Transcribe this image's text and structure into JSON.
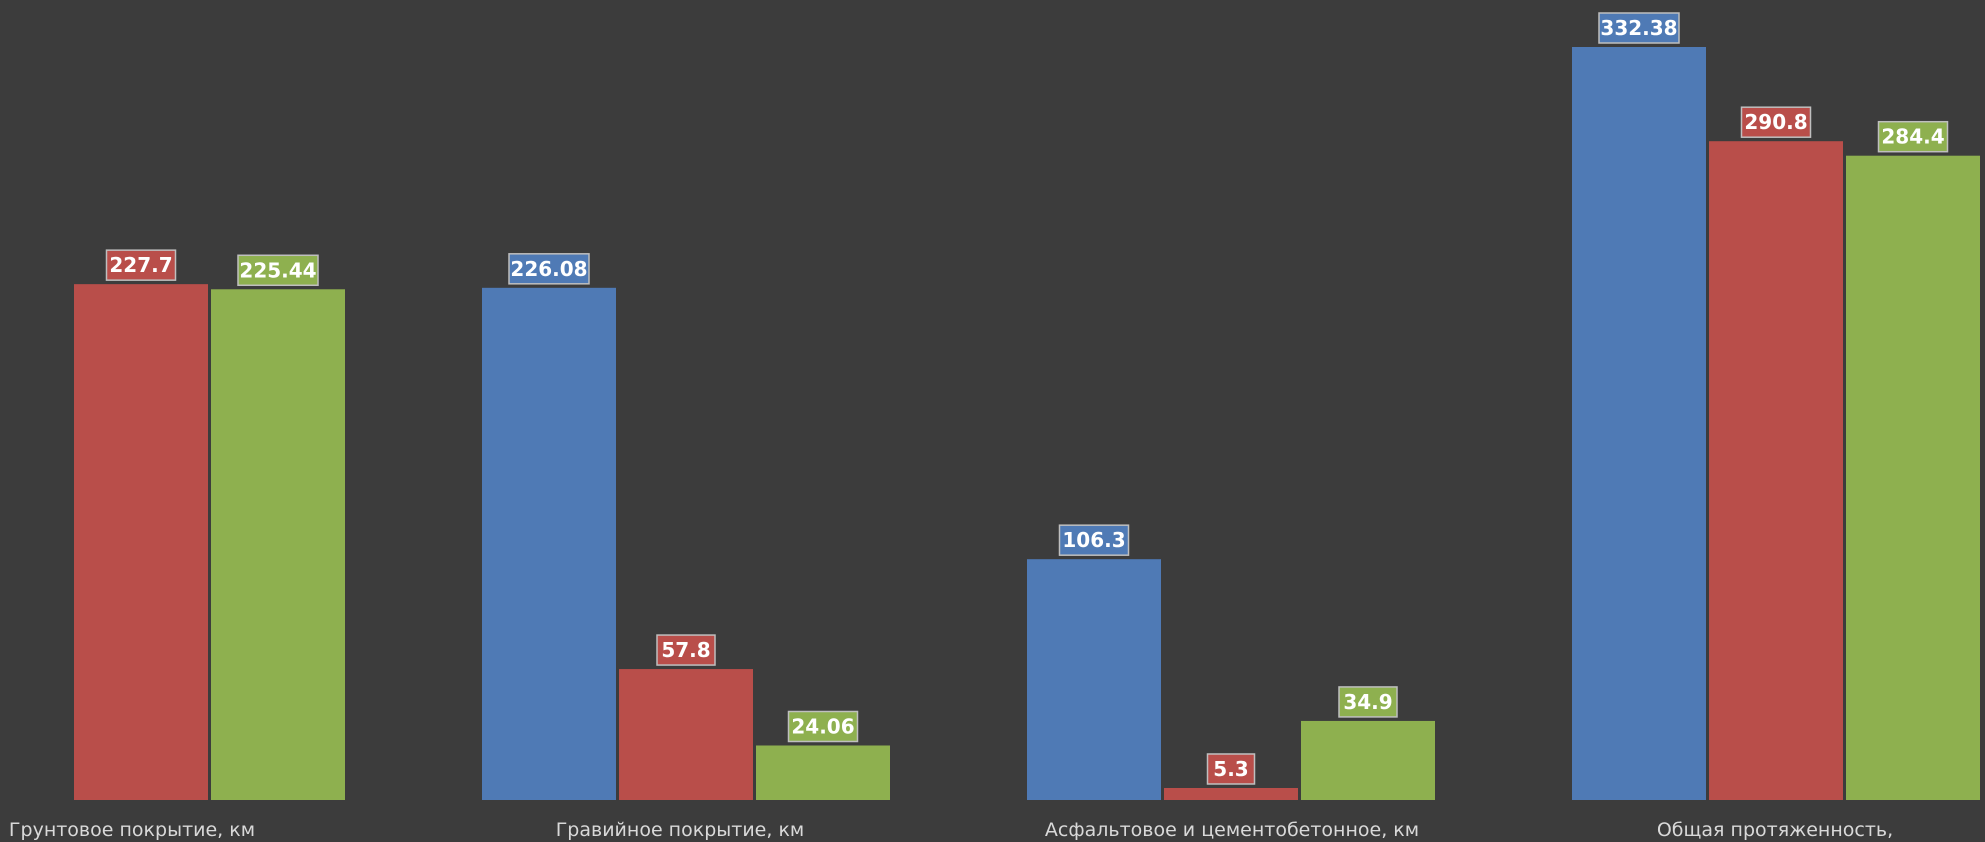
{
  "chart_data": {
    "type": "bar",
    "categories": [
      "Грунтовое покрытие, км",
      "Гравийное покрытие, км",
      "Асфальтовое и цементобетонное, км",
      "Общая протяженность,"
    ],
    "series": [
      {
        "color": "#4f7ab5",
        "values": [
          null,
          226.08,
          106.3,
          332.38
        ]
      },
      {
        "color": "#b94e4a",
        "values": [
          227.7,
          57.8,
          5.3,
          290.8
        ]
      },
      {
        "color": "#8eb04f",
        "values": [
          225.44,
          24.06,
          34.9,
          284.4
        ]
      }
    ],
    "title": "",
    "xlabel": "",
    "ylabel": "",
    "ylim": [
      0,
      340
    ],
    "grid": false,
    "legend": "none",
    "data_labels": true
  }
}
